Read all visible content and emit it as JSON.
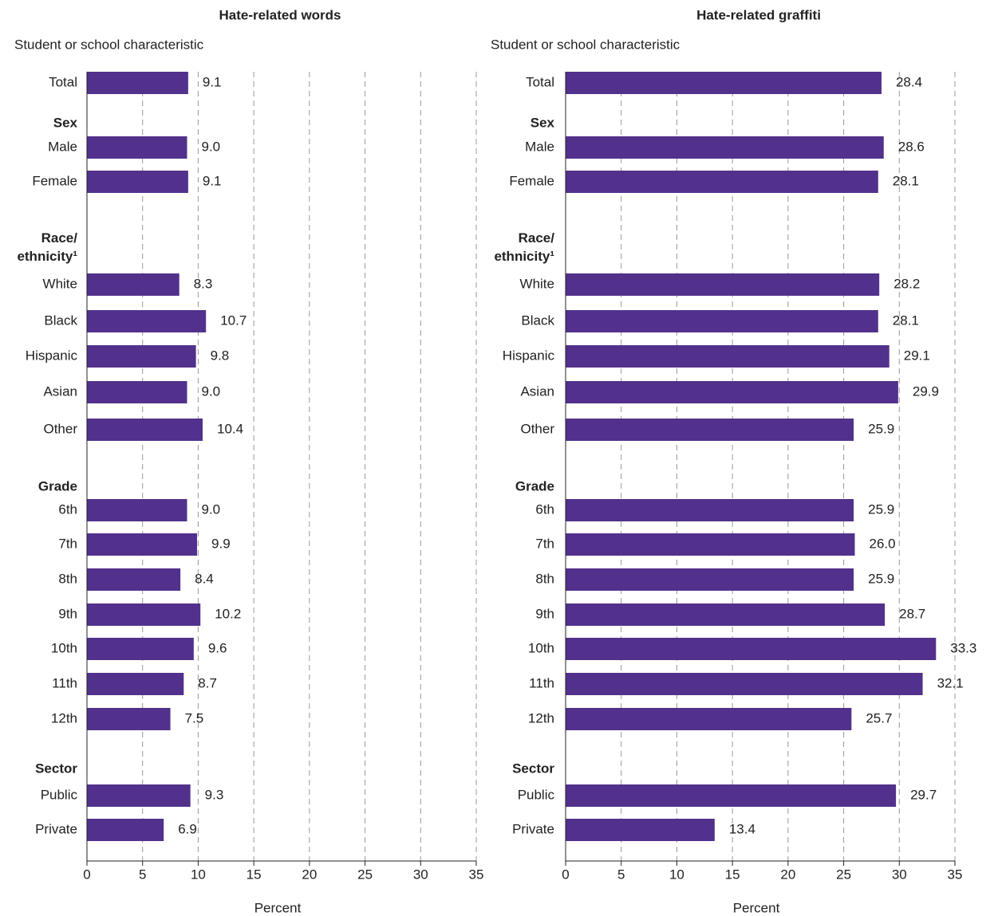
{
  "chart_data": [
    {
      "type": "bar",
      "orientation": "horizontal",
      "title": "Hate-related words",
      "y_label": "Student or school characteristic",
      "x_label": "Percent",
      "color": "#52318c",
      "xlim": [
        0,
        35
      ],
      "xticks": [
        0,
        5,
        10,
        15,
        20,
        25,
        30,
        35
      ],
      "grid": true,
      "groups": [
        {
          "categories": [
            "Total"
          ],
          "values": [
            9.1
          ],
          "value_labels": [
            "9.1"
          ]
        },
        {
          "name": "Sex",
          "categories": [
            "Male",
            "Female"
          ],
          "values": [
            9.0,
            9.1
          ],
          "value_labels": [
            "9.0",
            "9.1"
          ]
        },
        {
          "name": "Race/ethnicity¹",
          "categories": [
            "White",
            "Black",
            "Hispanic",
            "Asian",
            "Other"
          ],
          "values": [
            8.3,
            10.7,
            9.8,
            9.0,
            10.4
          ],
          "value_labels": [
            "8.3",
            "10.7",
            "9.8",
            "9.0",
            "10.4"
          ]
        },
        {
          "name": "Grade",
          "categories": [
            "6th",
            "7th",
            "8th",
            "9th",
            "10th",
            "11th",
            "12th"
          ],
          "values": [
            9.0,
            9.9,
            8.4,
            10.2,
            9.6,
            8.7,
            7.5
          ],
          "value_labels": [
            "9.0",
            "9.9",
            "8.4",
            "10.2",
            "9.6",
            "8.7",
            "7.5"
          ]
        },
        {
          "name": "Sector",
          "categories": [
            "Public",
            "Private"
          ],
          "values": [
            9.3,
            6.9
          ],
          "value_labels": [
            "9.3",
            "6.9"
          ]
        }
      ]
    },
    {
      "type": "bar",
      "orientation": "horizontal",
      "title": "Hate-related graffiti",
      "y_label": "Student or school characteristic",
      "x_label": "Percent",
      "color": "#52318c",
      "xlim": [
        0,
        35
      ],
      "xticks": [
        0,
        5,
        10,
        15,
        20,
        25,
        30,
        35
      ],
      "grid": true,
      "groups": [
        {
          "categories": [
            "Total"
          ],
          "values": [
            28.4
          ],
          "value_labels": [
            "28.4"
          ]
        },
        {
          "name": "Sex",
          "categories": [
            "Male",
            "Female"
          ],
          "values": [
            28.6,
            28.1
          ],
          "value_labels": [
            "28.6",
            "28.1"
          ]
        },
        {
          "name": "Race/ethnicity¹",
          "categories": [
            "White",
            "Black",
            "Hispanic",
            "Asian",
            "Other"
          ],
          "values": [
            28.2,
            28.1,
            29.1,
            29.9,
            25.9
          ],
          "value_labels": [
            "28.2",
            "28.1",
            "29.1",
            "29.9",
            "25.9"
          ]
        },
        {
          "name": "Grade",
          "categories": [
            "6th",
            "7th",
            "8th",
            "9th",
            "10th",
            "11th",
            "12th"
          ],
          "values": [
            25.9,
            26.0,
            25.9,
            28.7,
            33.3,
            32.1,
            25.7
          ],
          "value_labels": [
            "25.9",
            "26.0",
            "25.9",
            "28.7",
            "33.3",
            "32.1",
            "25.7"
          ]
        },
        {
          "name": "Sector",
          "categories": [
            "Public",
            "Private"
          ],
          "values": [
            29.7,
            13.4
          ],
          "value_labels": [
            "29.7",
            "13.4"
          ]
        }
      ]
    }
  ]
}
